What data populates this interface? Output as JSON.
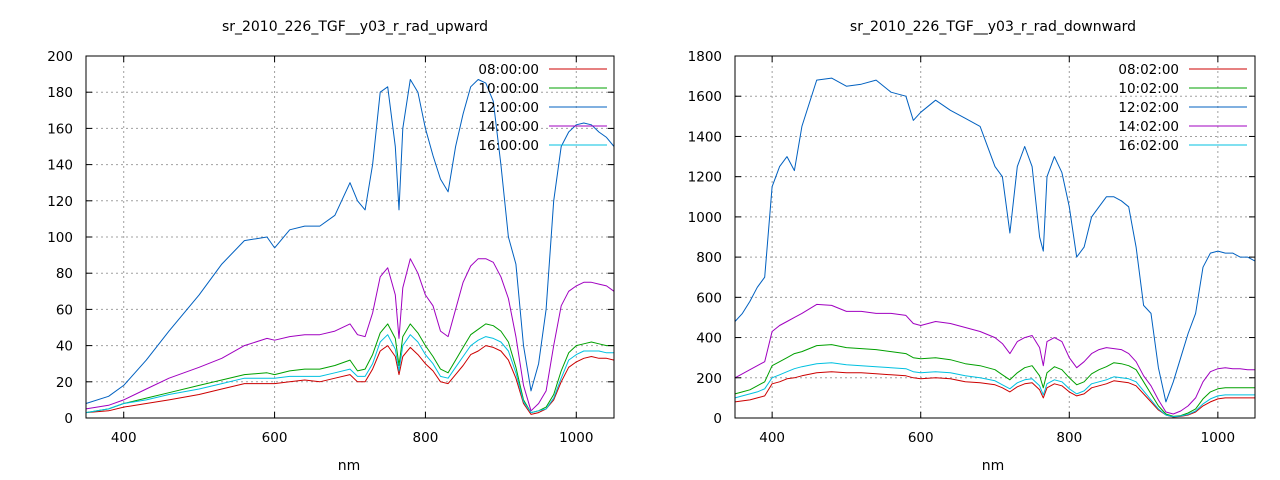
{
  "chart_data": [
    {
      "type": "line",
      "title": "sr_2010_226_TGF__y03_r_rad_upward",
      "xlabel": "nm",
      "ylabel": "",
      "xlim": [
        350,
        1050
      ],
      "ylim": [
        0,
        200
      ],
      "xticks": [
        400,
        600,
        800,
        1000
      ],
      "yticks": [
        0,
        20,
        40,
        60,
        80,
        100,
        120,
        140,
        160,
        180,
        200
      ],
      "grid": true,
      "legend_position": "top-right",
      "x": [
        350,
        380,
        400,
        430,
        460,
        500,
        530,
        560,
        590,
        600,
        620,
        640,
        660,
        680,
        700,
        710,
        720,
        730,
        740,
        750,
        760,
        765,
        770,
        780,
        790,
        800,
        810,
        820,
        830,
        840,
        850,
        860,
        870,
        880,
        890,
        900,
        910,
        920,
        930,
        940,
        950,
        960,
        970,
        980,
        990,
        1000,
        1010,
        1020,
        1030,
        1040,
        1050
      ],
      "series": [
        {
          "name": "08:00:00",
          "color": "#cc0000",
          "values": [
            3,
            4,
            6,
            8,
            10,
            13,
            16,
            19,
            19,
            19,
            20,
            21,
            20,
            22,
            24,
            20,
            20,
            27,
            37,
            40,
            34,
            24,
            34,
            39,
            35,
            30,
            26,
            20,
            19,
            24,
            29,
            35,
            37,
            40,
            39,
            37,
            32,
            22,
            8,
            2,
            3,
            5,
            10,
            20,
            28,
            31,
            33,
            34,
            33,
            33,
            32
          ]
        },
        {
          "name": "10:00:00",
          "color": "#00a000",
          "values": [
            3,
            5,
            8,
            11,
            14,
            18,
            21,
            24,
            25,
            24,
            26,
            27,
            27,
            29,
            32,
            26,
            27,
            35,
            47,
            52,
            44,
            29,
            45,
            52,
            47,
            40,
            34,
            27,
            25,
            32,
            39,
            46,
            49,
            52,
            51,
            48,
            42,
            28,
            10,
            3,
            4,
            6,
            13,
            26,
            36,
            40,
            41,
            42,
            41,
            40,
            40
          ]
        },
        {
          "name": "12:00:00",
          "color": "#0060c0",
          "values": [
            8,
            12,
            18,
            32,
            48,
            68,
            85,
            98,
            100,
            94,
            104,
            106,
            106,
            112,
            130,
            120,
            115,
            140,
            180,
            183,
            150,
            115,
            160,
            187,
            180,
            160,
            145,
            132,
            125,
            150,
            168,
            183,
            187,
            185,
            175,
            140,
            100,
            85,
            40,
            15,
            30,
            60,
            120,
            150,
            158,
            162,
            163,
            162,
            158,
            155,
            150
          ]
        },
        {
          "name": "14:00:00",
          "color": "#a000c0",
          "values": [
            5,
            7,
            10,
            16,
            22,
            28,
            33,
            40,
            44,
            43,
            45,
            46,
            46,
            48,
            52,
            46,
            45,
            58,
            78,
            83,
            68,
            44,
            72,
            88,
            80,
            68,
            62,
            48,
            45,
            60,
            75,
            84,
            88,
            88,
            86,
            78,
            66,
            45,
            18,
            4,
            8,
            15,
            40,
            62,
            70,
            73,
            75,
            75,
            74,
            73,
            70
          ]
        },
        {
          "name": "16:00:00",
          "color": "#00c0e0",
          "values": [
            3,
            5,
            8,
            10,
            13,
            16,
            19,
            22,
            22,
            22,
            23,
            23,
            23,
            25,
            27,
            23,
            23,
            30,
            42,
            46,
            38,
            26,
            40,
            46,
            42,
            35,
            30,
            23,
            22,
            28,
            34,
            40,
            43,
            45,
            44,
            42,
            37,
            25,
            9,
            3,
            4,
            5,
            11,
            22,
            32,
            35,
            37,
            37,
            37,
            36,
            36
          ]
        }
      ]
    },
    {
      "type": "line",
      "title": "sr_2010_226_TGF__y03_r_rad_downward",
      "xlabel": "nm",
      "ylabel": "",
      "xlim": [
        350,
        1050
      ],
      "ylim": [
        0,
        1800
      ],
      "xticks": [
        400,
        600,
        800,
        1000
      ],
      "yticks": [
        0,
        200,
        400,
        600,
        800,
        1000,
        1200,
        1400,
        1600,
        1800
      ],
      "grid": true,
      "legend_position": "top-right",
      "x": [
        350,
        360,
        370,
        380,
        390,
        400,
        410,
        420,
        430,
        440,
        460,
        480,
        500,
        520,
        540,
        560,
        580,
        590,
        600,
        620,
        640,
        660,
        680,
        700,
        710,
        720,
        730,
        740,
        750,
        760,
        765,
        770,
        780,
        790,
        800,
        810,
        820,
        830,
        840,
        850,
        860,
        870,
        880,
        890,
        900,
        910,
        920,
        930,
        940,
        950,
        960,
        970,
        980,
        990,
        1000,
        1010,
        1020,
        1030,
        1040,
        1050
      ],
      "series": [
        {
          "name": "08:02:00",
          "color": "#cc0000",
          "values": [
            80,
            85,
            90,
            100,
            110,
            170,
            180,
            195,
            200,
            210,
            225,
            230,
            225,
            225,
            220,
            215,
            210,
            200,
            195,
            200,
            195,
            180,
            175,
            165,
            150,
            130,
            155,
            170,
            175,
            140,
            100,
            150,
            170,
            160,
            130,
            110,
            120,
            150,
            160,
            170,
            185,
            180,
            175,
            160,
            120,
            80,
            40,
            15,
            5,
            8,
            15,
            30,
            60,
            80,
            95,
            100,
            100,
            100,
            100,
            100
          ]
        },
        {
          "name": "10:02:00",
          "color": "#00a000",
          "values": [
            120,
            130,
            140,
            160,
            180,
            260,
            280,
            300,
            320,
            330,
            360,
            365,
            350,
            345,
            340,
            330,
            320,
            300,
            295,
            300,
            290,
            270,
            260,
            240,
            215,
            190,
            225,
            250,
            260,
            210,
            150,
            225,
            255,
            240,
            200,
            165,
            180,
            220,
            240,
            255,
            275,
            270,
            260,
            240,
            180,
            120,
            60,
            20,
            8,
            12,
            25,
            45,
            95,
            130,
            145,
            150,
            150,
            150,
            150,
            150
          ]
        },
        {
          "name": "12:02:00",
          "color": "#0060c0",
          "values": [
            480,
            520,
            580,
            650,
            700,
            1150,
            1250,
            1300,
            1230,
            1450,
            1680,
            1690,
            1650,
            1660,
            1680,
            1620,
            1600,
            1480,
            1520,
            1580,
            1530,
            1490,
            1450,
            1250,
            1200,
            920,
            1250,
            1350,
            1250,
            900,
            830,
            1200,
            1300,
            1220,
            1050,
            800,
            850,
            1000,
            1050,
            1100,
            1100,
            1080,
            1050,
            850,
            560,
            520,
            250,
            80,
            180,
            300,
            420,
            520,
            750,
            820,
            830,
            820,
            820,
            800,
            800,
            780
          ]
        },
        {
          "name": "14:02:00",
          "color": "#a000c0",
          "values": [
            200,
            220,
            240,
            260,
            280,
            430,
            460,
            480,
            500,
            520,
            565,
            560,
            530,
            530,
            520,
            520,
            510,
            470,
            460,
            480,
            470,
            450,
            430,
            400,
            370,
            320,
            380,
            400,
            410,
            350,
            260,
            380,
            400,
            380,
            300,
            250,
            280,
            320,
            340,
            350,
            345,
            340,
            320,
            280,
            210,
            160,
            90,
            30,
            20,
            35,
            60,
            100,
            180,
            230,
            245,
            250,
            245,
            245,
            240,
            240
          ]
        },
        {
          "name": "16:02:00",
          "color": "#00c0e0",
          "values": [
            100,
            110,
            120,
            130,
            145,
            200,
            215,
            230,
            245,
            255,
            270,
            275,
            265,
            260,
            255,
            250,
            245,
            230,
            225,
            230,
            225,
            210,
            200,
            185,
            165,
            145,
            175,
            190,
            195,
            160,
            115,
            170,
            190,
            180,
            145,
            120,
            135,
            170,
            180,
            190,
            205,
            200,
            195,
            180,
            135,
            90,
            45,
            15,
            6,
            10,
            18,
            35,
            70,
            95,
            110,
            115,
            115,
            115,
            115,
            115
          ]
        }
      ]
    }
  ]
}
